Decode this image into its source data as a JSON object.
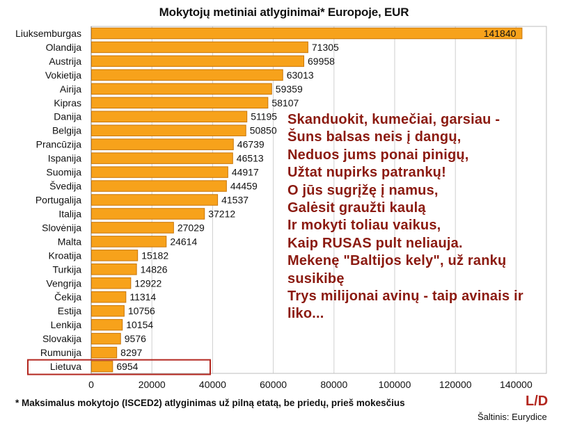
{
  "title": "Mokytojų metiniai atlyginimai* Europoje, EUR",
  "chart_data": {
    "type": "bar",
    "orientation": "horizontal",
    "categories": [
      "Liuksemburgas",
      "Olandija",
      "Austrija",
      "Vokietija",
      "Airija",
      "Kipras",
      "Danija",
      "Belgija",
      "Prancūzija",
      "Ispanija",
      "Suomija",
      "Švedija",
      "Portugalija",
      "Italija",
      "Slovėnija",
      "Malta",
      "Kroatija",
      "Turkija",
      "Vengrija",
      "Čekija",
      "Estija",
      "Lenkija",
      "Slovakija",
      "Rumunija",
      "Lietuva"
    ],
    "values": [
      141840,
      71305,
      69958,
      63013,
      59359,
      58107,
      51195,
      50850,
      46739,
      46513,
      44917,
      44459,
      41537,
      37212,
      27029,
      24614,
      15182,
      14826,
      12922,
      11314,
      10756,
      10154,
      9576,
      8297,
      6954
    ],
    "value_labels": [
      "141840",
      "71305",
      "69958",
      "63013",
      "59359",
      "58107",
      "51195",
      "50850",
      "46739",
      "46513",
      "44917",
      "44459",
      "41537",
      "37212",
      "27029",
      "24614",
      "15182",
      "14826",
      "12922",
      "11314",
      "10756",
      "10154",
      "9576",
      "8297",
      "6954"
    ],
    "xlim": [
      0,
      150000
    ],
    "xticks": [
      "0",
      "20000",
      "40000",
      "60000",
      "80000",
      "100000",
      "120000",
      "140000"
    ],
    "xtick_values": [
      0,
      20000,
      40000,
      60000,
      80000,
      100000,
      120000,
      140000
    ],
    "grid": true,
    "highlight_category": "Lietuva",
    "bar_color": "#f7a21b",
    "bar_edge_color": "#c8760a",
    "highlight_color": "#b3261e"
  },
  "poem_lines": [
    "Skanduokit, kumečiai, garsiau -",
    "Šuns balsas neis į dangų,",
    "Neduos jums ponai pinigų,",
    "Užtat nupirks patrankų!",
    "O jūs sugrįžę į namus,",
    "Galėsit graužti kaulą",
    "Ir mokyti toliau vaikus,",
    "Kaip RUSAS pult neliauja.",
    "Mekenę \"Baltijos kely\", už rankų",
    "susikibę",
    "Trys milijonai avinų - taip avinais ir",
    "liko..."
  ],
  "footnote": "* Maksimalus mokytojo (ISCED2) atlyginimas už pilną etatą, be priedų, prieš mokesčius",
  "logo": "L/D",
  "source": "Šaltinis: Eurydice"
}
